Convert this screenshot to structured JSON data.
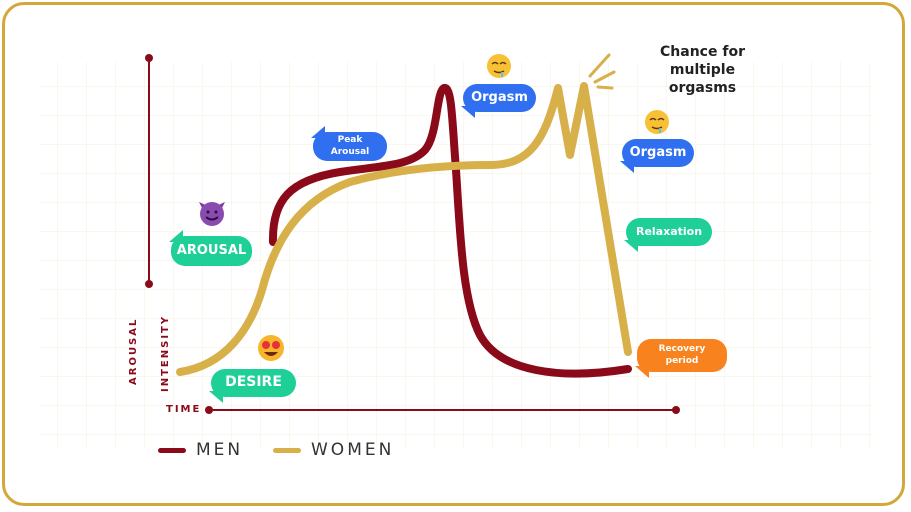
{
  "axes": {
    "y_label_1": "AROUSAL",
    "y_label_2": "INTENSITY",
    "x_label": "TIME"
  },
  "labels": {
    "desire": "DESIRE",
    "arousal": "AROUSAL",
    "peak_arousal": "Peak Arousal",
    "orgasm_men": "Orgasm",
    "orgasm_women": "Orgasm",
    "relaxation": "Relaxation",
    "recovery": "Recovery period",
    "multiple": "Chance for multiple orgasms"
  },
  "legend": [
    {
      "name": "MEN",
      "color": "#8b0a1a"
    },
    {
      "name": "WOMEN",
      "color": "#d8b04a"
    }
  ],
  "colors": {
    "frame": "#d2a83a",
    "green": "#1fcf98",
    "blue": "#2f6ff0",
    "orange": "#f7821e",
    "axis": "#8b0a1a"
  },
  "icons": [
    "smiling-devil-emoji",
    "heart-eyes-emoji",
    "drooling-face-emoji"
  ]
}
